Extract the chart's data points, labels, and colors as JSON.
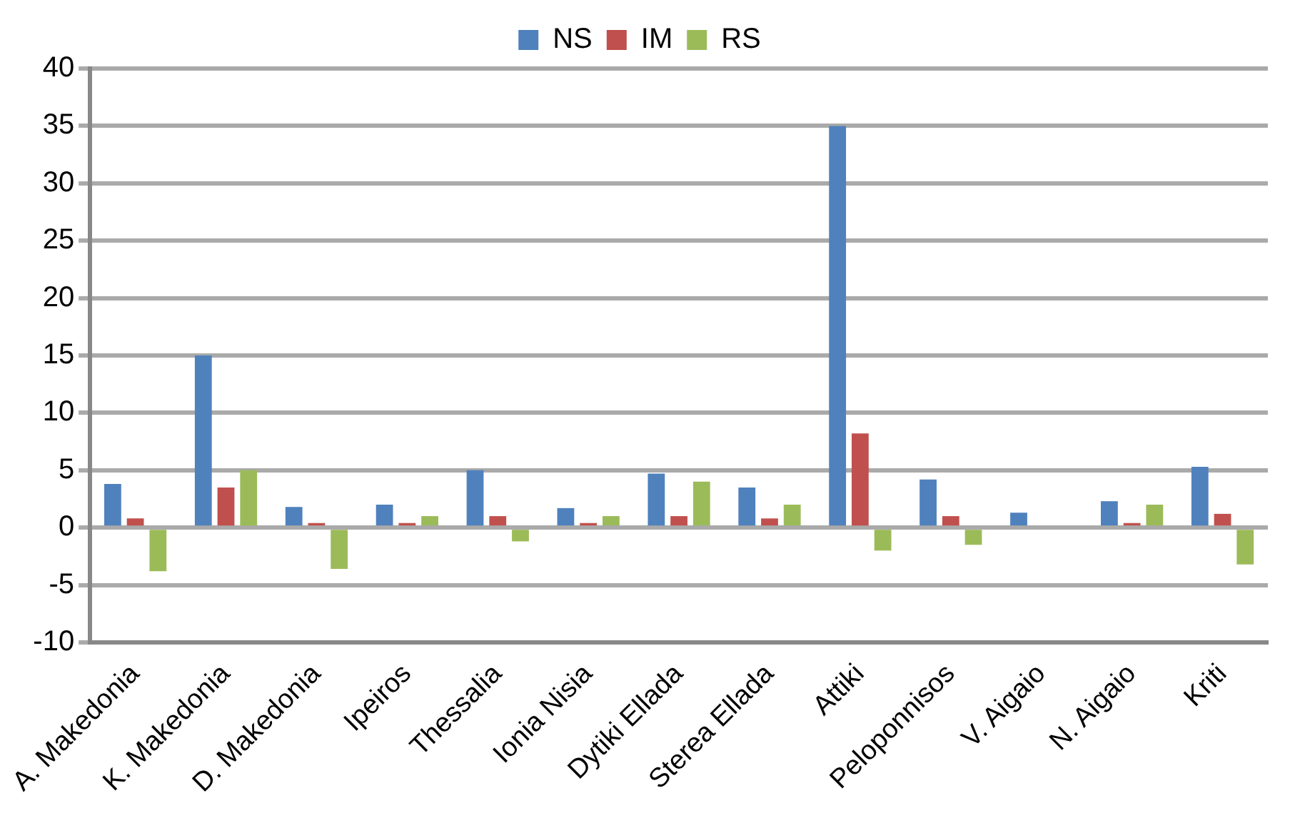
{
  "chart_data": {
    "type": "bar",
    "categories": [
      "A. Makedonia",
      "K. Makedonia",
      "D. Makedonia",
      "Ipeiros",
      "Thessalia",
      "Ionia Nisia",
      "Dytiki Ellada",
      "Sterea Ellada",
      "Attiki",
      "Peloponnisos",
      "V. Aigaio",
      "N. Aigaio",
      "Kriti"
    ],
    "series": [
      {
        "name": "NS",
        "color": "#4f81bd",
        "values": [
          3.8,
          15,
          1.8,
          2,
          5,
          1.7,
          4.7,
          3.5,
          35,
          4.2,
          1.3,
          2.3,
          5.3
        ]
      },
      {
        "name": "IM",
        "color": "#c0504d",
        "values": [
          0.8,
          3.5,
          0.4,
          0.4,
          1,
          0.4,
          1,
          0.8,
          8.2,
          1,
          0,
          0.4,
          1.2
        ]
      },
      {
        "name": "RS",
        "color": "#9bbb59",
        "values": [
          -3.8,
          5,
          -3.6,
          1,
          -1.2,
          1,
          4,
          2,
          -2,
          -1.5,
          0,
          2,
          -3.2
        ]
      }
    ],
    "ylim": [
      -10,
      40
    ],
    "yticks": [
      -10,
      -5,
      0,
      5,
      10,
      15,
      20,
      25,
      30,
      35,
      40
    ],
    "grid": "y",
    "legend": "top"
  }
}
